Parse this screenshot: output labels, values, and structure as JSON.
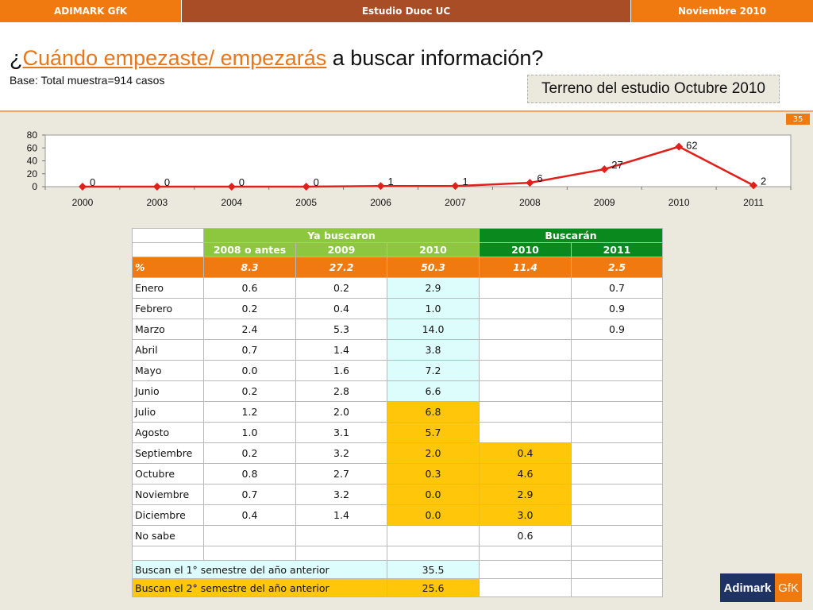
{
  "header": {
    "left": "ADIMARK GfK",
    "center": "Estudio Duoc UC",
    "right": "Noviembre 2010"
  },
  "title": {
    "prefix": "¿",
    "highlight": "Cuándo empezaste/ empezarás",
    "suffix": " a buscar información?"
  },
  "subtitle": "Base: Total muestra=914 casos",
  "terreno": "Terreno del estudio Octubre 2010",
  "page_number": "35",
  "colors": {
    "accent": "#f07a10",
    "series": "#e0201b",
    "green": "#8dc63f",
    "dark_green": "#0a8a1e",
    "cyan": "#ddfcfc",
    "yellow": "#ffc60a"
  },
  "chart_data": {
    "type": "line",
    "x": [
      "2000",
      "2003",
      "2004",
      "2005",
      "2006",
      "2007",
      "2008",
      "2009",
      "2010",
      "2011"
    ],
    "series": [
      {
        "values": [
          0,
          0,
          0,
          0,
          1,
          1,
          6,
          27,
          62,
          2
        ]
      }
    ],
    "yticks": [
      0,
      20,
      40,
      60,
      80
    ],
    "ylim": [
      0,
      80
    ],
    "grid": false,
    "legend": "none"
  },
  "table": {
    "group_headers": [
      "Ya  buscaron",
      "Buscarán"
    ],
    "columns": [
      "2008 o antes",
      "2009",
      "2010",
      "2010",
      "2011"
    ],
    "pct_row": {
      "label": "%",
      "values": [
        "8.3",
        "27.2",
        "50.3",
        "11.4",
        "2.5"
      ]
    },
    "rows": [
      {
        "label": "Enero",
        "values": [
          "0.6",
          "0.2",
          "2.9",
          "",
          "0.7"
        ]
      },
      {
        "label": "Febrero",
        "values": [
          "0.2",
          "0.4",
          "1.0",
          "",
          "0.9"
        ]
      },
      {
        "label": "Marzo",
        "values": [
          "2.4",
          "5.3",
          "14.0",
          "",
          "0.9"
        ]
      },
      {
        "label": "Abril",
        "values": [
          "0.7",
          "1.4",
          "3.8",
          "",
          ""
        ]
      },
      {
        "label": "Mayo",
        "values": [
          "0.0",
          "1.6",
          "7.2",
          "",
          ""
        ]
      },
      {
        "label": "Junio",
        "values": [
          "0.2",
          "2.8",
          "6.6",
          "",
          ""
        ]
      },
      {
        "label": "Julio",
        "values": [
          "1.2",
          "2.0",
          "6.8",
          "",
          ""
        ]
      },
      {
        "label": "Agosto",
        "values": [
          "1.0",
          "3.1",
          "5.7",
          "",
          ""
        ]
      },
      {
        "label": "Septiembre",
        "values": [
          "0.2",
          "3.2",
          "2.0",
          "0.4",
          ""
        ]
      },
      {
        "label": "Octubre",
        "values": [
          "0.8",
          "2.7",
          "0.3",
          "4.6",
          ""
        ]
      },
      {
        "label": "Noviembre",
        "values": [
          "0.7",
          "3.2",
          "0.0",
          "2.9",
          ""
        ]
      },
      {
        "label": "Diciembre",
        "values": [
          "0.4",
          "1.4",
          "0.0",
          "3.0",
          ""
        ]
      },
      {
        "label": "No sabe",
        "values": [
          "",
          "",
          "",
          "0.6",
          ""
        ]
      }
    ],
    "summary": [
      {
        "label": "Buscan el 1° semestre del año anterior",
        "value": "35.5"
      },
      {
        "label": "Buscan el 2° semestre del año anterior",
        "value": "25.6"
      }
    ]
  },
  "logo": {
    "left": "Adimark",
    "right": "GfK"
  }
}
